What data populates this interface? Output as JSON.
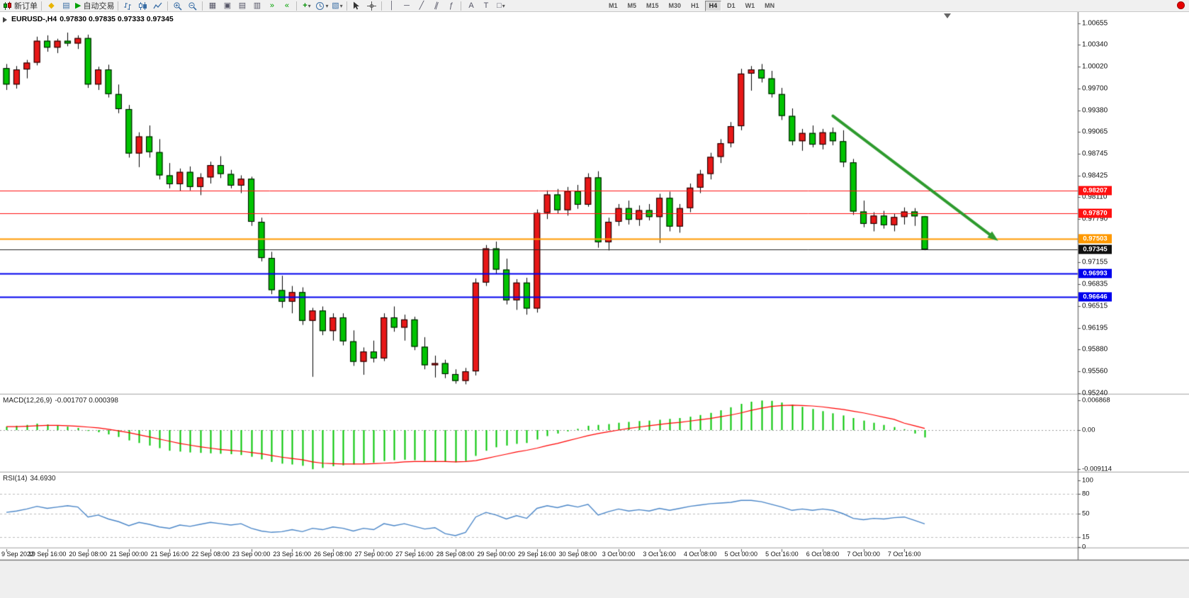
{
  "toolbar": {
    "new_order": "新订单",
    "auto_trading": "自动交易",
    "timeframes": [
      "M1",
      "M5",
      "M15",
      "M30",
      "H1",
      "H4",
      "D1",
      "W1",
      "MN"
    ],
    "active_timeframe": "H4",
    "icons": {
      "metaeditor": "◆",
      "market_watch": "▤",
      "autotrading_play": "▶",
      "tile_windows": "▦",
      "cascade": "▣",
      "tile_h": "▤",
      "tile_v": "▥",
      "autoscroll": "»",
      "shift": "«",
      "add_indicator": "+",
      "dropdown": "▾",
      "templates": "▧",
      "vline": "│",
      "hline": "─",
      "trendline": "╱",
      "channel": "∥",
      "fibo": "ƒ",
      "text_tool": "A",
      "label_tool": "T",
      "shapes": "□"
    }
  },
  "chart": {
    "symbol_title": "EURUSD-,H4",
    "ohlc_text": "0.97830 0.97835 0.97333 0.97345",
    "price_tags": [
      {
        "text": "0.98207",
        "price": 0.98207,
        "color": "#ff1111"
      },
      {
        "text": "0.97870",
        "price": 0.9787,
        "color": "#ff1111"
      },
      {
        "text": "0.97503",
        "price": 0.97503,
        "color": "#ff9900"
      },
      {
        "text": "0.97345",
        "price": 0.97345,
        "color": "#111111"
      },
      {
        "text": "0.96993",
        "price": 0.96993,
        "color": "#0000ee"
      },
      {
        "text": "0.96646",
        "price": 0.96646,
        "color": "#0000ee"
      }
    ]
  },
  "indicators": {
    "macd": {
      "label": "MACD(12,26,9)",
      "values_text": "-0.001707 0.000398"
    },
    "rsi": {
      "label": "RSI(14)",
      "value_text": "34.6930"
    }
  },
  "chart_data": [
    {
      "type": "candlestick",
      "title": "EURUSD-,H4",
      "ohlc_last": [
        0.9783,
        0.97835,
        0.97333,
        0.97345
      ],
      "up_color": "#e81717",
      "down_color": "#00c400",
      "wick_color": "#000000",
      "y_ticks": [
        "1.00655",
        "1.00340",
        "1.00020",
        "0.99700",
        "0.99380",
        "0.99065",
        "0.98745",
        "0.98425",
        "0.98110",
        "0.97790",
        "0.97470",
        "0.97155",
        "0.96835",
        "0.96515",
        "0.96195",
        "0.95880",
        "0.95560",
        "0.95240"
      ],
      "x_labels": [
        {
          "label": "9 Sep 2022",
          "index": 0
        },
        {
          "label": "19 Sep 16:00",
          "index": 4
        },
        {
          "label": "20 Sep 08:00",
          "index": 8
        },
        {
          "label": "21 Sep 00:00",
          "index": 12
        },
        {
          "label": "21 Sep 16:00",
          "index": 16
        },
        {
          "label": "22 Sep 08:00",
          "index": 20
        },
        {
          "label": "23 Sep 00:00",
          "index": 24
        },
        {
          "label": "23 Sep 16:00",
          "index": 28
        },
        {
          "label": "26 Sep 08:00",
          "index": 32
        },
        {
          "label": "27 Sep 00:00",
          "index": 36
        },
        {
          "label": "27 Sep 16:00",
          "index": 40
        },
        {
          "label": "28 Sep 08:00",
          "index": 44
        },
        {
          "label": "29 Sep 00:00",
          "index": 48
        },
        {
          "label": "29 Sep 16:00",
          "index": 52
        },
        {
          "label": "30 Sep 08:00",
          "index": 56
        },
        {
          "label": "3 Oct 00:00",
          "index": 60
        },
        {
          "label": "3 Oct 16:00",
          "index": 64
        },
        {
          "label": "4 Oct 08:00",
          "index": 68
        },
        {
          "label": "5 Oct 00:00",
          "index": 72
        },
        {
          "label": "5 Oct 16:00",
          "index": 76
        },
        {
          "label": "6 Oct 08:00",
          "index": 80
        },
        {
          "label": "7 Oct 00:00",
          "index": 84
        },
        {
          "label": "7 Oct 16:00",
          "index": 88
        }
      ],
      "candles": [
        [
          1.0,
          1.0006,
          0.9968,
          0.9976
        ],
        [
          0.9976,
          1.0003,
          0.997,
          0.9998
        ],
        [
          0.9998,
          1.0012,
          0.9985,
          1.0008
        ],
        [
          1.0008,
          1.0046,
          1.0004,
          1.004
        ],
        [
          1.004,
          1.0048,
          1.0024,
          1.003
        ],
        [
          1.003,
          1.0043,
          1.0022,
          1.004
        ],
        [
          1.004,
          1.0052,
          1.0032,
          1.0036
        ],
        [
          1.0036,
          1.0048,
          1.0028,
          1.0044
        ],
        [
          1.0044,
          1.0049,
          0.9971,
          0.9976
        ],
        [
          0.9976,
          1.0002,
          0.9968,
          0.9998
        ],
        [
          0.9998,
          1.0005,
          0.9957,
          0.9962
        ],
        [
          0.9962,
          0.9976,
          0.9934,
          0.994
        ],
        [
          0.994,
          0.9946,
          0.9869,
          0.9875
        ],
        [
          0.9875,
          0.9906,
          0.9855,
          0.99
        ],
        [
          0.99,
          0.9916,
          0.9869,
          0.9877
        ],
        [
          0.9877,
          0.9896,
          0.9837,
          0.9843
        ],
        [
          0.9843,
          0.9861,
          0.9824,
          0.983
        ],
        [
          0.983,
          0.9853,
          0.982,
          0.9848
        ],
        [
          0.9848,
          0.9856,
          0.9821,
          0.9826
        ],
        [
          0.9826,
          0.9846,
          0.9814,
          0.984
        ],
        [
          0.984,
          0.9863,
          0.9831,
          0.9858
        ],
        [
          0.9858,
          0.9871,
          0.9839,
          0.9845
        ],
        [
          0.9845,
          0.9851,
          0.9824,
          0.9828
        ],
        [
          0.9828,
          0.9843,
          0.9817,
          0.9838
        ],
        [
          0.9838,
          0.9841,
          0.9769,
          0.9775
        ],
        [
          0.9775,
          0.9781,
          0.9717,
          0.9722
        ],
        [
          0.9722,
          0.9731,
          0.9669,
          0.9675
        ],
        [
          0.9675,
          0.9696,
          0.9649,
          0.9658
        ],
        [
          0.9658,
          0.9681,
          0.9641,
          0.9672
        ],
        [
          0.9672,
          0.9679,
          0.9624,
          0.963
        ],
        [
          0.963,
          0.9649,
          0.9548,
          0.9645
        ],
        [
          0.9645,
          0.9651,
          0.9609,
          0.9615
        ],
        [
          0.9615,
          0.9641,
          0.9601,
          0.9635
        ],
        [
          0.9635,
          0.9641,
          0.9594,
          0.96
        ],
        [
          0.96,
          0.9616,
          0.9564,
          0.957
        ],
        [
          0.957,
          0.9591,
          0.9551,
          0.9585
        ],
        [
          0.9585,
          0.9601,
          0.9569,
          0.9575
        ],
        [
          0.9575,
          0.9641,
          0.9571,
          0.9635
        ],
        [
          0.9635,
          0.9651,
          0.9614,
          0.962
        ],
        [
          0.962,
          0.9639,
          0.9601,
          0.9632
        ],
        [
          0.9632,
          0.9636,
          0.9587,
          0.9592
        ],
        [
          0.9592,
          0.9606,
          0.9559,
          0.9565
        ],
        [
          0.9565,
          0.9579,
          0.9547,
          0.9568
        ],
        [
          0.9568,
          0.9573,
          0.9546,
          0.9552
        ],
        [
          0.9552,
          0.9559,
          0.9538,
          0.9542
        ],
        [
          0.9542,
          0.9561,
          0.9537,
          0.9556
        ],
        [
          0.9556,
          0.9692,
          0.955,
          0.9686
        ],
        [
          0.9686,
          0.9741,
          0.9681,
          0.9736
        ],
        [
          0.9736,
          0.9746,
          0.9699,
          0.9705
        ],
        [
          0.9705,
          0.9721,
          0.9654,
          0.966
        ],
        [
          0.966,
          0.9691,
          0.9646,
          0.9686
        ],
        [
          0.9686,
          0.9693,
          0.9639,
          0.9648
        ],
        [
          0.9648,
          0.9793,
          0.9642,
          0.9788
        ],
        [
          0.9788,
          0.9821,
          0.9779,
          0.9815
        ],
        [
          0.9815,
          0.9823,
          0.9787,
          0.9792
        ],
        [
          0.9792,
          0.9826,
          0.9784,
          0.982
        ],
        [
          0.982,
          0.9829,
          0.9794,
          0.98
        ],
        [
          0.98,
          0.9846,
          0.9797,
          0.984
        ],
        [
          0.984,
          0.9849,
          0.9737,
          0.9745
        ],
        [
          0.9745,
          0.9781,
          0.9733,
          0.9775
        ],
        [
          0.9775,
          0.9801,
          0.9769,
          0.9795
        ],
        [
          0.9795,
          0.9806,
          0.9771,
          0.9778
        ],
        [
          0.9778,
          0.9799,
          0.9769,
          0.9792
        ],
        [
          0.9792,
          0.9801,
          0.9777,
          0.9782
        ],
        [
          0.9782,
          0.9816,
          0.9744,
          0.981
        ],
        [
          0.981,
          0.9819,
          0.9761,
          0.9768
        ],
        [
          0.9768,
          0.9801,
          0.9759,
          0.9795
        ],
        [
          0.9795,
          0.9831,
          0.9789,
          0.9825
        ],
        [
          0.9825,
          0.9851,
          0.9817,
          0.9845
        ],
        [
          0.9845,
          0.9876,
          0.9837,
          0.987
        ],
        [
          0.987,
          0.9896,
          0.9861,
          0.989
        ],
        [
          0.989,
          0.9921,
          0.9884,
          0.9915
        ],
        [
          0.9915,
          0.9999,
          0.9909,
          0.9992
        ],
        [
          0.9992,
          1.0003,
          0.9967,
          0.9998
        ],
        [
          0.9998,
          1.0006,
          0.9979,
          0.9985
        ],
        [
          0.9985,
          0.9996,
          0.9957,
          0.9962
        ],
        [
          0.9962,
          0.9971,
          0.9924,
          0.993
        ],
        [
          0.993,
          0.9941,
          0.9887,
          0.9893
        ],
        [
          0.9893,
          0.9911,
          0.9879,
          0.9905
        ],
        [
          0.9905,
          0.9916,
          0.9884,
          0.9888
        ],
        [
          0.9888,
          0.9911,
          0.9881,
          0.9906
        ],
        [
          0.9906,
          0.9913,
          0.9887,
          0.9893
        ],
        [
          0.9893,
          0.9909,
          0.9855,
          0.9862
        ],
        [
          0.9862,
          0.9867,
          0.9785,
          0.979
        ],
        [
          0.979,
          0.9806,
          0.9767,
          0.9772
        ],
        [
          0.9772,
          0.9789,
          0.9761,
          0.9784
        ],
        [
          0.9784,
          0.9791,
          0.9765,
          0.977
        ],
        [
          0.977,
          0.9787,
          0.9761,
          0.9782
        ],
        [
          0.9782,
          0.9796,
          0.9771,
          0.979
        ],
        [
          0.979,
          0.9795,
          0.9769,
          0.9783
        ],
        [
          0.9783,
          0.97835,
          0.97333,
          0.97345
        ]
      ],
      "hlines": [
        {
          "price": 0.98207,
          "color": "#ff1111",
          "width": 1
        },
        {
          "price": 0.9787,
          "color": "#ff1111",
          "width": 1
        },
        {
          "price": 0.97503,
          "color": "#ff9900",
          "width": 2
        },
        {
          "price": 0.97345,
          "color": "#222222",
          "width": 1
        },
        {
          "price": 0.96993,
          "color": "#0000ee",
          "width": 2
        },
        {
          "price": 0.96646,
          "color": "#0000ee",
          "width": 2
        }
      ],
      "bid": 0.97345,
      "trend_arrow": {
        "from_index": 81,
        "from_price": 0.993,
        "to_index": 97.2,
        "to_price": 0.9747,
        "color": "#2e9b2e",
        "width": 4
      }
    },
    {
      "type": "bar",
      "name": "MACD(12,26,9)",
      "current": [
        -0.001707,
        0.000398
      ],
      "hist_color": "#00c400",
      "signal_color": "#ff0000",
      "y_ticks": [
        {
          "label": "0.006868",
          "value": 0.006868
        },
        {
          "label": "0.00",
          "value": 0
        },
        {
          "label": "-0.009114",
          "value": -0.009114
        }
      ],
      "histogram": [
        0.0008,
        0.001,
        0.0012,
        0.0015,
        0.0013,
        0.0011,
        0.0008,
        0.0005,
        -0.0002,
        -0.0005,
        -0.001,
        -0.0016,
        -0.0024,
        -0.003,
        -0.0036,
        -0.0042,
        -0.0048,
        -0.005,
        -0.0052,
        -0.0053,
        -0.0054,
        -0.0055,
        -0.0056,
        -0.0058,
        -0.0062,
        -0.0068,
        -0.0074,
        -0.0078,
        -0.008,
        -0.0083,
        -0.0091,
        -0.0088,
        -0.0084,
        -0.0082,
        -0.008,
        -0.0078,
        -0.0076,
        -0.0072,
        -0.007,
        -0.0069,
        -0.007,
        -0.0072,
        -0.0073,
        -0.0074,
        -0.0075,
        -0.0072,
        -0.006,
        -0.0048,
        -0.004,
        -0.0036,
        -0.0032,
        -0.003,
        -0.0022,
        -0.0014,
        -0.0008,
        -0.0003,
        0.0003,
        0.001,
        0.0012,
        0.0014,
        0.0017,
        0.0019,
        0.0021,
        0.0022,
        0.0024,
        0.0026,
        0.0028,
        0.0031,
        0.0035,
        0.004,
        0.0046,
        0.0053,
        0.0061,
        0.0066,
        0.00687,
        0.0068,
        0.0064,
        0.0059,
        0.0054,
        0.0049,
        0.0044,
        0.0039,
        0.0034,
        0.0028,
        0.0022,
        0.0017,
        0.0012,
        0.0007,
        0.0002,
        -0.0008,
        -0.001707
      ],
      "signal": [
        0.0008,
        0.0008,
        0.0009,
        0.001,
        0.0011,
        0.0011,
        0.001,
        0.0009,
        0.0007,
        0.0005,
        0.0002,
        -0.0002,
        -0.0006,
        -0.0011,
        -0.0016,
        -0.0021,
        -0.0026,
        -0.0031,
        -0.0035,
        -0.0039,
        -0.0042,
        -0.0045,
        -0.0047,
        -0.0049,
        -0.0052,
        -0.0055,
        -0.0059,
        -0.0063,
        -0.0066,
        -0.0069,
        -0.0074,
        -0.0077,
        -0.0078,
        -0.0079,
        -0.0079,
        -0.0079,
        -0.0078,
        -0.0077,
        -0.0076,
        -0.0074,
        -0.0073,
        -0.0073,
        -0.0073,
        -0.0073,
        -0.0074,
        -0.0073,
        -0.0071,
        -0.0066,
        -0.0061,
        -0.0056,
        -0.0051,
        -0.0047,
        -0.0042,
        -0.0036,
        -0.0031,
        -0.0025,
        -0.0019,
        -0.0013,
        -0.0008,
        -0.0004,
        0.0,
        0.0004,
        0.0007,
        0.001,
        0.0013,
        0.0016,
        0.0018,
        0.0021,
        0.0024,
        0.0027,
        0.0031,
        0.0035,
        0.004,
        0.0046,
        0.0051,
        0.0055,
        0.0057,
        0.0058,
        0.0057,
        0.0056,
        0.0054,
        0.0051,
        0.0048,
        0.0044,
        0.004,
        0.0035,
        0.003,
        0.0025,
        0.0016,
        0.001,
        0.000398
      ]
    },
    {
      "type": "line",
      "name": "RSI(14)",
      "current": 34.693,
      "line_color": "#4a86c8",
      "levels": [
        {
          "label": "100",
          "value": 100
        },
        {
          "label": "80",
          "value": 80
        },
        {
          "label": "50",
          "value": 50
        },
        {
          "label": "15",
          "value": 15
        },
        {
          "label": "0",
          "value": 0
        }
      ],
      "values": [
        52,
        54,
        57,
        61,
        58,
        60,
        62,
        60,
        45,
        48,
        42,
        38,
        32,
        37,
        34,
        30,
        28,
        33,
        31,
        34,
        37,
        35,
        33,
        35,
        28,
        24,
        22,
        23,
        26,
        23,
        28,
        26,
        30,
        28,
        24,
        28,
        26,
        35,
        32,
        35,
        31,
        27,
        29,
        20,
        17,
        22,
        45,
        52,
        48,
        42,
        47,
        43,
        58,
        62,
        59,
        63,
        60,
        64,
        48,
        53,
        57,
        54,
        56,
        54,
        58,
        55,
        58,
        61,
        63,
        65,
        66,
        67,
        70,
        70,
        68,
        64,
        60,
        55,
        57,
        55,
        57,
        55,
        50,
        43,
        41,
        43,
        42,
        44,
        45,
        40,
        34.693
      ]
    }
  ]
}
